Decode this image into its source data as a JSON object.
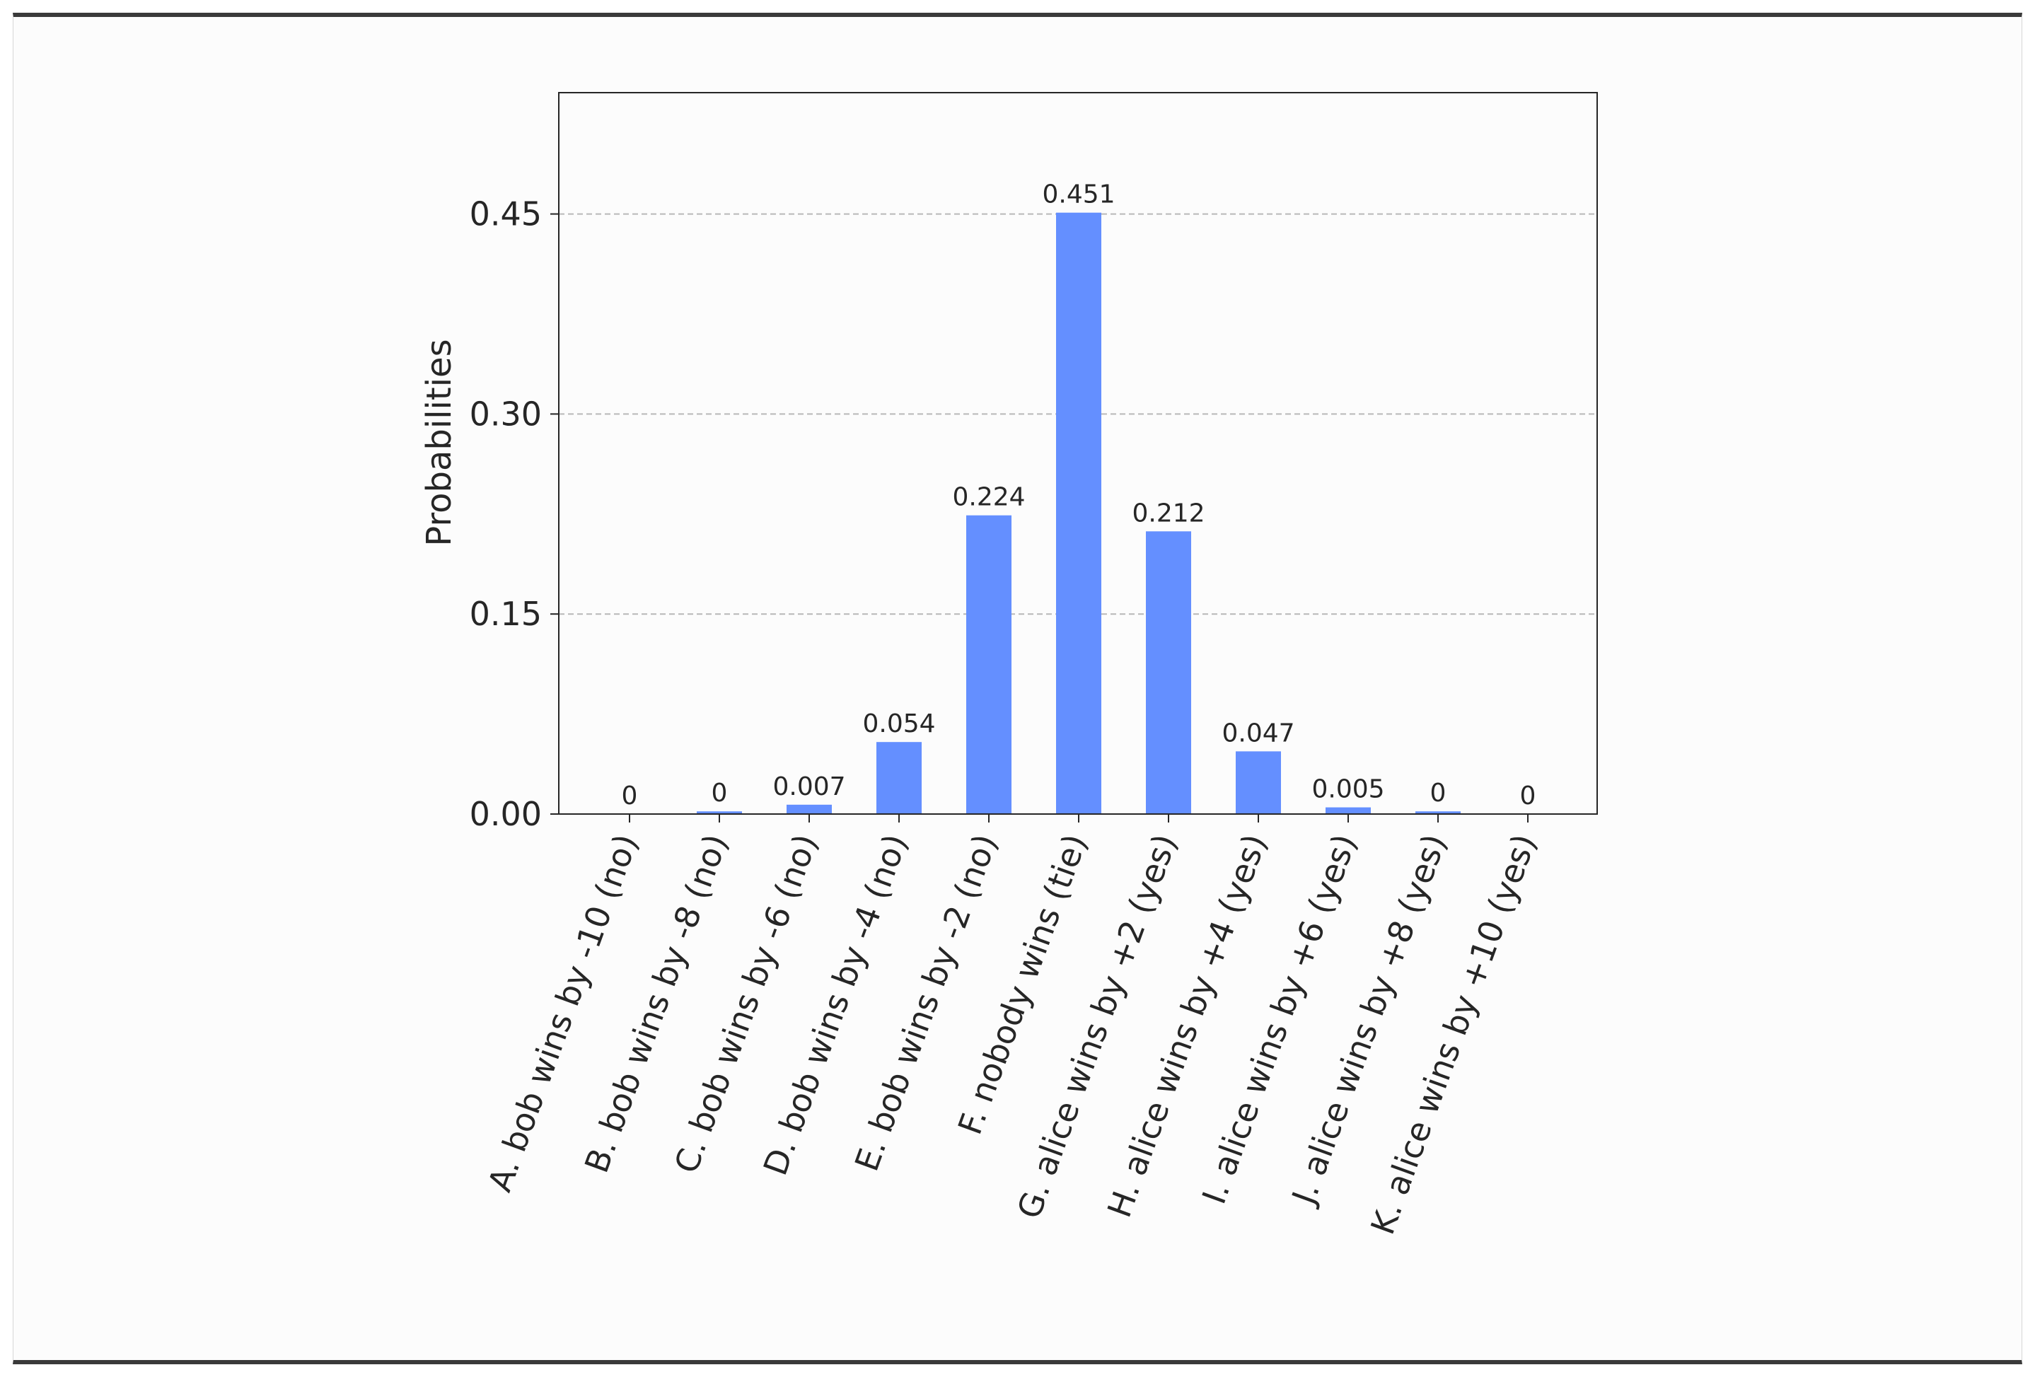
{
  "chart_data": {
    "type": "bar",
    "title": "",
    "xlabel": "",
    "ylabel": "Probabilities",
    "categories": [
      "A. bob wins by -10 (no)",
      "B. bob wins by -8 (no)",
      "C. bob wins by -6 (no)",
      "D. bob wins by -4 (no)",
      "E. bob wins by -2 (no)",
      "F. nobody wins (tie)",
      "G. alice wins by +2 (yes)",
      "H. alice wins by +4 (yes)",
      "I. alice wins by +6 (yes)",
      "J. alice wins by +8 (yes)",
      "K. alice wins by +10 (yes)"
    ],
    "values": [
      0.0,
      0.002,
      0.007,
      0.054,
      0.224,
      0.451,
      0.212,
      0.047,
      0.005,
      0.002,
      0.0
    ],
    "data_labels": [
      "0",
      "0",
      "0.007",
      "0.054",
      "0.224",
      "0.451",
      "0.212",
      "0.047",
      "0.005",
      "0",
      "0"
    ],
    "y_ticks": [
      0.0,
      0.15,
      0.3,
      0.45
    ],
    "y_tick_labels": [
      "0.00",
      "0.15",
      "0.30",
      "0.45"
    ],
    "ylim": [
      0,
      0.541
    ],
    "grid": "horizontal dashed",
    "bar_color": "#648fff",
    "grid_color": "#b8b8b8",
    "text_color": "#262626"
  }
}
